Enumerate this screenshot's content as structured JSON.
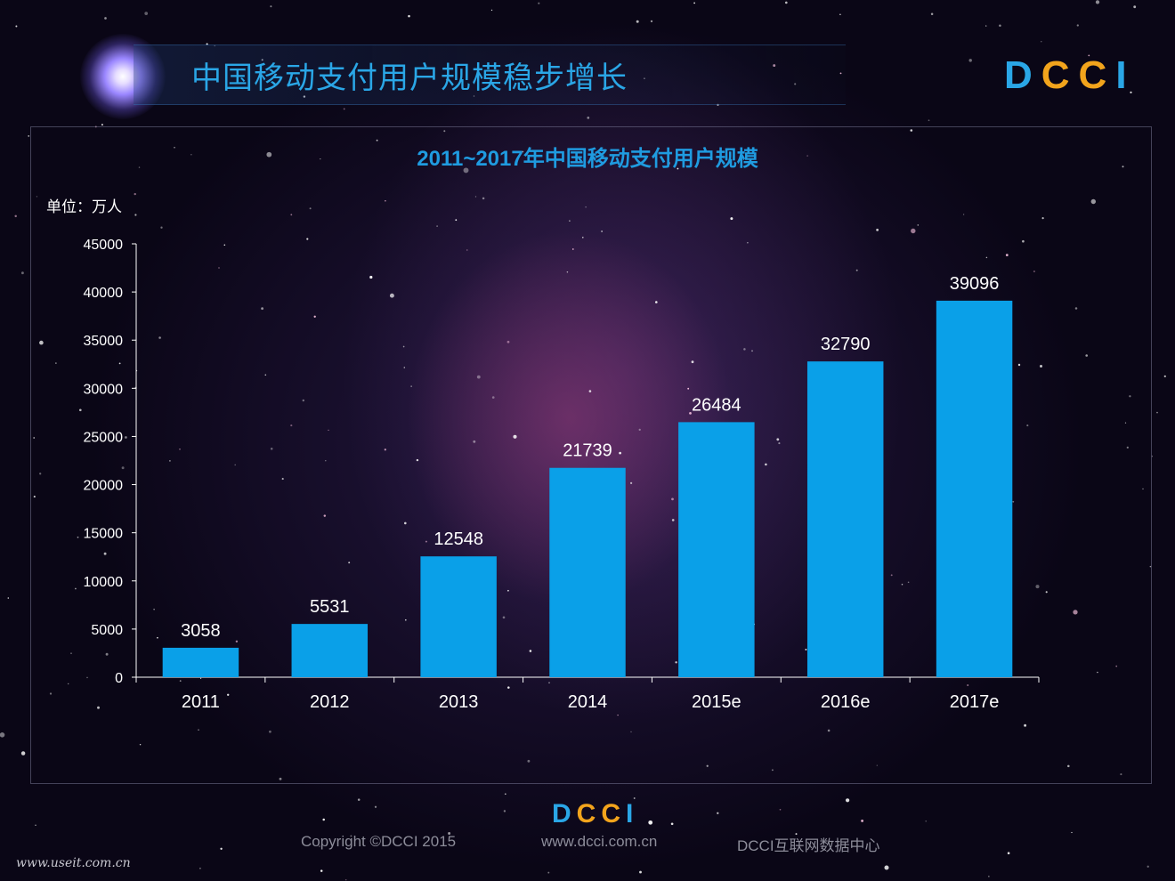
{
  "header": {
    "title": "中国移动支付用户规模稳步增长",
    "logo": "DCCI",
    "logo_parts": [
      "D",
      "CC",
      "I"
    ]
  },
  "chart_data": {
    "type": "bar",
    "title": "2011~2017年中国移动支付用户规模",
    "unit_label": "单位：万人",
    "categories": [
      "2011",
      "2012",
      "2013",
      "2014",
      "2015e",
      "2016e",
      "2017e"
    ],
    "values": [
      3058,
      5531,
      12548,
      21739,
      26484,
      32790,
      39096
    ],
    "yticks": [
      0,
      5000,
      10000,
      15000,
      20000,
      25000,
      30000,
      35000,
      40000,
      45000
    ],
    "ylim": [
      0,
      45000
    ],
    "xlabel": "",
    "ylabel": "",
    "grid": false,
    "bar_color": "#0aa0e8"
  },
  "footer": {
    "copyright": "Copyright ©DCCI 2015",
    "url": "www.dcci.com.cn",
    "org": "DCCI互联网数据中心",
    "logo_parts": [
      "D",
      "CC",
      "I"
    ]
  },
  "watermark": "www.useit.com.cn",
  "colors": {
    "accent": "#2aa6e6",
    "logo_orange": "#f2a41c",
    "bar": "#0aa0e8",
    "text": "#ffffff"
  }
}
